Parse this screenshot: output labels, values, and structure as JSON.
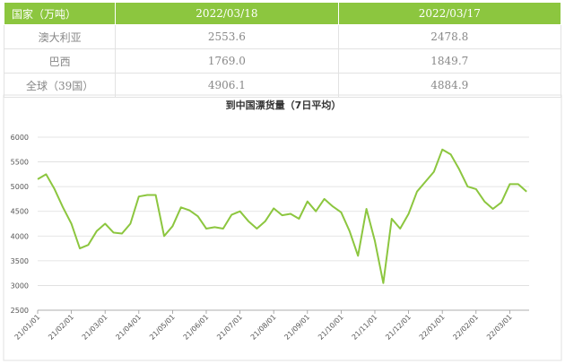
{
  "table": {
    "header": [
      "国家（万吨）",
      "2022/03/18",
      "2022/03/17"
    ],
    "rows": [
      [
        "澳大利亚",
        "2553.6",
        "2478.8"
      ],
      [
        "巴西",
        "1769.0",
        "1849.7"
      ],
      [
        "全球（39国）",
        "4906.1",
        "4884.9"
      ]
    ]
  },
  "chart_data": {
    "type": "line",
    "title": "到中国漂货量（7日平均）",
    "categories": [
      "21/01/01",
      null,
      null,
      null,
      "21/02/01",
      null,
      null,
      null,
      "21/03/01",
      null,
      null,
      null,
      "21/04/01",
      null,
      null,
      null,
      "21/05/01",
      null,
      null,
      null,
      "21/06/01",
      null,
      null,
      null,
      "21/07/01",
      null,
      null,
      null,
      "21/08/01",
      null,
      null,
      null,
      "21/09/01",
      null,
      null,
      null,
      "21/10/01",
      null,
      null,
      null,
      "21/11/01",
      null,
      null,
      null,
      "21/12/01",
      null,
      null,
      null,
      "22/01/01",
      null,
      null,
      null,
      "22/02/01",
      null,
      null,
      null,
      "22/03/01",
      null,
      null
    ],
    "series": [
      {
        "color": "#8cc63f",
        "values": [
          5150,
          5250,
          4950,
          4580,
          4250,
          3750,
          3820,
          4100,
          4250,
          4070,
          4050,
          4250,
          4800,
          4830,
          4830,
          4000,
          4200,
          4580,
          4520,
          4400,
          4150,
          4180,
          4150,
          4430,
          4500,
          4300,
          4150,
          4300,
          4560,
          4420,
          4450,
          4350,
          4700,
          4500,
          4750,
          4600,
          4480,
          4100,
          3600,
          4550,
          3900,
          3050,
          4350,
          4150,
          4450,
          4900,
          5100,
          5300,
          5750,
          5650,
          5350,
          5000,
          4950,
          4700,
          4550,
          4680,
          5050,
          5050,
          4900
        ]
      }
    ],
    "ylim": [
      2500,
      6000
    ],
    "yticks": [
      2500,
      3000,
      3500,
      4000,
      4500,
      5000,
      5500,
      6000
    ],
    "grid": true
  }
}
